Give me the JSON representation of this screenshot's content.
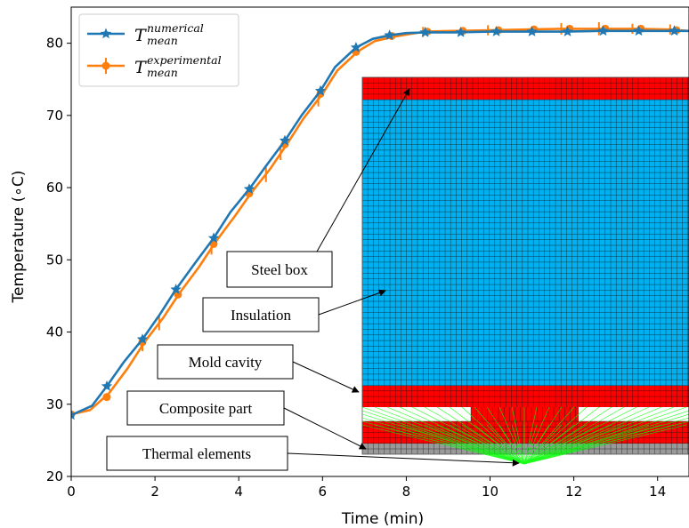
{
  "chart_data": {
    "type": "line",
    "xlabel": "Time (min)",
    "ylabel": "Temperature (∘C)",
    "xlim": [
      0,
      14.75
    ],
    "ylim": [
      20,
      85
    ],
    "xticks": [
      0,
      2,
      4,
      6,
      8,
      10,
      12,
      14
    ],
    "yticks": [
      20,
      30,
      40,
      50,
      60,
      70,
      80
    ],
    "grid": false,
    "legend": "top-left",
    "series": [
      {
        "name": "T_mean^numerical",
        "name_base": "T",
        "name_sup": "numerical",
        "name_sub": "mean",
        "color": "#1f77b4",
        "marker": "star",
        "x": [
          0,
          0.5,
          0.85,
          1.25,
          1.7,
          2.1,
          2.5,
          2.95,
          3.4,
          3.8,
          4.25,
          4.65,
          5.1,
          5.5,
          5.95,
          6.3,
          6.8,
          7.2,
          7.6,
          8.0,
          8.5,
          9.15,
          10.0,
          10.85,
          11.7,
          12.6,
          13.45,
          14.3,
          14.75
        ],
        "y": [
          28.5,
          29.8,
          32.5,
          35.8,
          39.0,
          42.3,
          45.9,
          49.5,
          53.0,
          56.6,
          59.8,
          63.0,
          66.5,
          70.0,
          73.4,
          76.7,
          79.4,
          80.6,
          81.1,
          81.4,
          81.5,
          81.5,
          81.6,
          81.6,
          81.6,
          81.7,
          81.7,
          81.7,
          81.7
        ],
        "marker_x": [
          0,
          0.85,
          1.7,
          2.5,
          3.4,
          4.25,
          5.1,
          5.95,
          6.8,
          7.6,
          8.45,
          9.3,
          10.15,
          11.0,
          11.85,
          12.7,
          13.55,
          14.4
        ],
        "marker_y": [
          28.5,
          32.5,
          39.0,
          45.9,
          53.0,
          59.8,
          66.5,
          73.4,
          79.4,
          81.1,
          81.5,
          81.5,
          81.6,
          81.6,
          81.6,
          81.7,
          81.7,
          81.7
        ]
      },
      {
        "name": "T_mean^experimental",
        "name_base": "T",
        "name_sup": "experimental",
        "name_sub": "mean",
        "color": "#ff7f0e",
        "marker": "circle",
        "x": [
          0,
          0.45,
          0.9,
          1.35,
          1.75,
          2.2,
          2.6,
          3.05,
          3.45,
          3.9,
          4.3,
          4.75,
          5.15,
          5.55,
          6.0,
          6.35,
          6.85,
          7.25,
          7.7,
          8.1,
          8.45,
          9.15,
          10.0,
          10.85,
          11.7,
          12.6,
          13.45,
          14.3,
          14.75
        ],
        "y": [
          28.6,
          29.2,
          31.5,
          35.0,
          38.6,
          42.0,
          45.5,
          49.0,
          52.5,
          56.0,
          59.3,
          62.6,
          66.0,
          69.6,
          73.0,
          76.2,
          78.9,
          80.3,
          80.9,
          81.3,
          81.6,
          81.7,
          81.8,
          81.9,
          82.0,
          82.0,
          82.0,
          81.9,
          81.7
        ],
        "marker_x": [
          0,
          0.85,
          1.7,
          2.55,
          3.4,
          4.25,
          5.1,
          5.95,
          6.8,
          7.65,
          8.5,
          9.35,
          10.2,
          11.05,
          11.9,
          12.75,
          13.6,
          14.45
        ],
        "marker_y": [
          28.6,
          31.0,
          38.6,
          45.2,
          52.2,
          59.2,
          66.0,
          73.0,
          78.8,
          81.0,
          81.6,
          81.7,
          81.8,
          81.9,
          82.0,
          82.0,
          82.0,
          81.8
        ],
        "errorbar_x": [
          1.7,
          2.1,
          3.35,
          4.65,
          5.0,
          5.9,
          8.4,
          9.95,
          11.7,
          12.6,
          13.4,
          14.3
        ],
        "errorbar_half": [
          0.8,
          1.0,
          0.9,
          1.1,
          0.9,
          1.0,
          0.7,
          0.7,
          0.8,
          0.9,
          0.7,
          0.7
        ]
      }
    ]
  },
  "mesh": {
    "colors": {
      "steel": "#ff0000",
      "insulation": "#00b0f0",
      "mold": "#ff0000",
      "part": "#ff0000",
      "thermal": "#999999",
      "link": "#00ff00",
      "gridline": "#1a1a1a"
    }
  },
  "annotations": [
    {
      "key": "steel_box",
      "label": "Steel box"
    },
    {
      "key": "insulation",
      "label": "Insulation"
    },
    {
      "key": "mold_cavity",
      "label": "Mold cavity"
    },
    {
      "key": "composite_part",
      "label": "Composite part"
    },
    {
      "key": "thermal_elements",
      "label": "Thermal elements"
    }
  ]
}
